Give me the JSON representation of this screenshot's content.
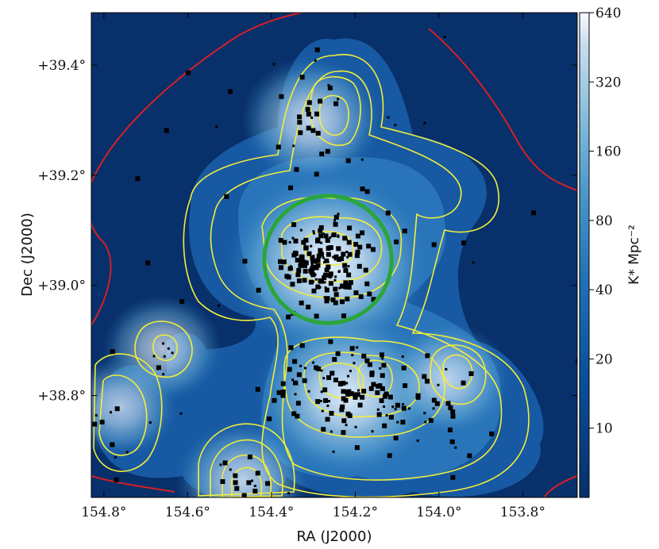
{
  "chart_data": {
    "type": "heatmap",
    "xlabel": "RA (J2000)",
    "ylabel": "Dec (J2000)",
    "xlim": [
      154.83,
      153.67
    ],
    "ylim": [
      38.615,
      39.495
    ],
    "x_ticks": [
      {
        "value": 154.8,
        "label": "154.8°"
      },
      {
        "value": 154.6,
        "label": "154.6°"
      },
      {
        "value": 154.4,
        "label": "154.4°"
      },
      {
        "value": 154.2,
        "label": "154.2°"
      },
      {
        "value": 154.0,
        "label": "154.0°"
      },
      {
        "value": 153.8,
        "label": "153.8°"
      }
    ],
    "y_ticks": [
      {
        "value": 39.4,
        "label": "+39.4°"
      },
      {
        "value": 39.2,
        "label": "+39.2°"
      },
      {
        "value": 39.0,
        "label": "+39.0°"
      },
      {
        "value": 38.8,
        "label": "+38.8°"
      }
    ],
    "colorbar": {
      "label": "K* Mpc⁻²",
      "scale": "log",
      "range": [
        5,
        640
      ],
      "ticks": [
        "640",
        "320",
        "160",
        "80",
        "40",
        "20",
        "10"
      ],
      "tick_values": [
        640,
        320,
        160,
        80,
        40,
        20,
        10
      ],
      "colormap": "Blues"
    },
    "density_peaks": [
      {
        "ra": 154.265,
        "dec": 39.04,
        "amplitude": 1.0
      },
      {
        "ra": 154.22,
        "dec": 38.8,
        "amplitude": 0.85
      },
      {
        "ra": 154.305,
        "dec": 39.3,
        "amplitude": 0.55
      },
      {
        "ra": 154.47,
        "dec": 38.645,
        "amplitude": 0.5
      },
      {
        "ra": 154.66,
        "dec": 38.885,
        "amplitude": 0.4
      },
      {
        "ra": 153.98,
        "dec": 38.83,
        "amplitude": 0.45
      },
      {
        "ra": 154.76,
        "dec": 38.78,
        "amplitude": 0.35
      }
    ],
    "contours": {
      "inner_color": "#f2ee3a",
      "outer_color": "#d42027"
    },
    "circle": {
      "ra_center": 154.265,
      "dec_center": 39.047,
      "radius_deg": 0.152,
      "color": "#2aa63a"
    },
    "galaxy_marker_color": "#000000"
  }
}
